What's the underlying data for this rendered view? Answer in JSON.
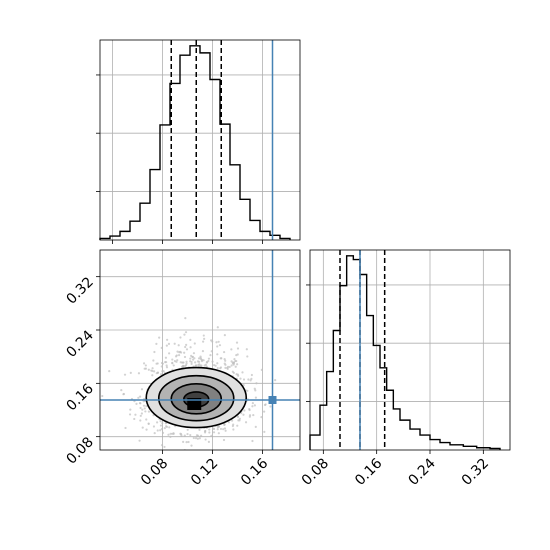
{
  "chart_data": {
    "type": "corner",
    "truth": {
      "x": 0.168,
      "y": 0.135,
      "color": "#4682b4"
    },
    "series_color": "#000000",
    "scatter_color": "#bfbfbf",
    "grid": true,
    "histogram_x": {
      "type": "histogram",
      "xlim": [
        0.03,
        0.19
      ],
      "quantiles": [
        0.087,
        0.107,
        0.127
      ],
      "bins": [
        {
          "left": 0.03,
          "right": 0.038,
          "count": 2
        },
        {
          "left": 0.038,
          "right": 0.046,
          "count": 5
        },
        {
          "left": 0.046,
          "right": 0.054,
          "count": 11
        },
        {
          "left": 0.054,
          "right": 0.062,
          "count": 24
        },
        {
          "left": 0.062,
          "right": 0.07,
          "count": 47
        },
        {
          "left": 0.07,
          "right": 0.078,
          "count": 90
        },
        {
          "left": 0.078,
          "right": 0.086,
          "count": 147
        },
        {
          "left": 0.086,
          "right": 0.094,
          "count": 200
        },
        {
          "left": 0.094,
          "right": 0.102,
          "count": 236
        },
        {
          "left": 0.102,
          "right": 0.11,
          "count": 248
        },
        {
          "left": 0.11,
          "right": 0.118,
          "count": 239
        },
        {
          "left": 0.118,
          "right": 0.126,
          "count": 205
        },
        {
          "left": 0.126,
          "right": 0.134,
          "count": 148
        },
        {
          "left": 0.134,
          "right": 0.142,
          "count": 96
        },
        {
          "left": 0.142,
          "right": 0.15,
          "count": 52
        },
        {
          "left": 0.15,
          "right": 0.158,
          "count": 25
        },
        {
          "left": 0.158,
          "right": 0.166,
          "count": 11
        },
        {
          "left": 0.166,
          "right": 0.174,
          "count": 6
        },
        {
          "left": 0.174,
          "right": 0.182,
          "count": 2
        }
      ]
    },
    "histogram_y": {
      "type": "histogram",
      "xlim": [
        0.06,
        0.36
      ],
      "xticks": [
        "0.08",
        "0.16",
        "0.24",
        "0.32"
      ],
      "quantiles": [
        0.105,
        0.135,
        0.172
      ],
      "bins": [
        {
          "left": 0.06,
          "right": 0.075,
          "count": 20
        },
        {
          "left": 0.075,
          "right": 0.085,
          "count": 60
        },
        {
          "left": 0.085,
          "right": 0.095,
          "count": 105
        },
        {
          "left": 0.095,
          "right": 0.105,
          "count": 160
        },
        {
          "left": 0.105,
          "right": 0.115,
          "count": 220
        },
        {
          "left": 0.115,
          "right": 0.125,
          "count": 260
        },
        {
          "left": 0.125,
          "right": 0.135,
          "count": 255
        },
        {
          "left": 0.135,
          "right": 0.145,
          "count": 235
        },
        {
          "left": 0.145,
          "right": 0.155,
          "count": 180
        },
        {
          "left": 0.155,
          "right": 0.165,
          "count": 140
        },
        {
          "left": 0.165,
          "right": 0.175,
          "count": 110
        },
        {
          "left": 0.175,
          "right": 0.185,
          "count": 80
        },
        {
          "left": 0.185,
          "right": 0.195,
          "count": 55
        },
        {
          "left": 0.195,
          "right": 0.21,
          "count": 40
        },
        {
          "left": 0.21,
          "right": 0.225,
          "count": 28
        },
        {
          "left": 0.225,
          "right": 0.24,
          "count": 20
        },
        {
          "left": 0.24,
          "right": 0.255,
          "count": 14
        },
        {
          "left": 0.255,
          "right": 0.27,
          "count": 10
        },
        {
          "left": 0.27,
          "right": 0.29,
          "count": 7
        },
        {
          "left": 0.29,
          "right": 0.31,
          "count": 5
        },
        {
          "left": 0.31,
          "right": 0.33,
          "count": 3
        },
        {
          "left": 0.33,
          "right": 0.345,
          "count": 2
        }
      ]
    },
    "joint": {
      "type": "contour_scatter",
      "xlim": [
        0.03,
        0.19
      ],
      "ylim": [
        0.06,
        0.36
      ],
      "xticks": [
        "0.08",
        "0.12",
        "0.16"
      ],
      "yticks": [
        "0.08",
        "0.16",
        "0.24",
        "0.32"
      ],
      "center": [
        0.107,
        0.135
      ],
      "spread": [
        0.02,
        0.03
      ],
      "contour_levels": [
        {
          "sigma": 0.5,
          "fill": "#404040"
        },
        {
          "sigma": 1.0,
          "fill": "#808080"
        },
        {
          "sigma": 1.5,
          "fill": "#b3b3b3"
        },
        {
          "sigma": 2.0,
          "fill": "#e0e0e0"
        }
      ],
      "core_fill": "#000000"
    }
  }
}
